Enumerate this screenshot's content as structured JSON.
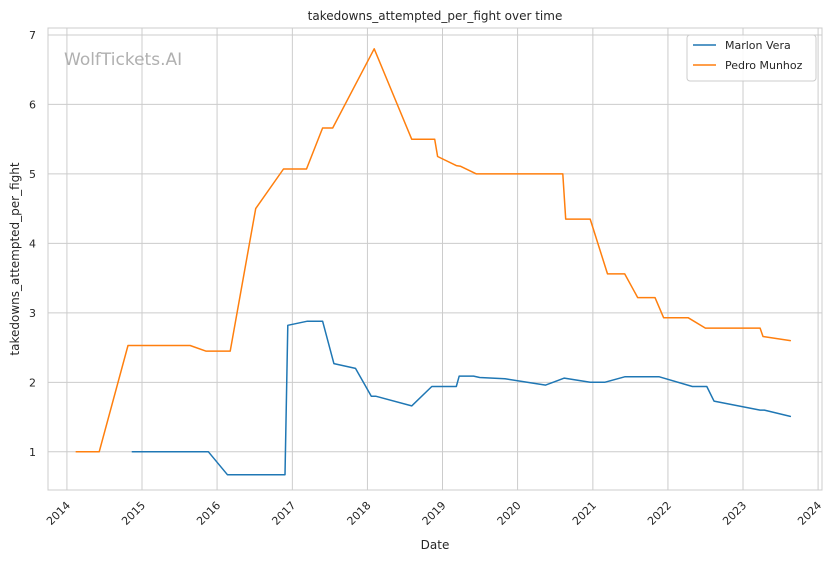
{
  "chart_data": {
    "type": "line",
    "title": "takedowns_attempted_per_fight over time",
    "xlabel": "Date",
    "ylabel": "takedowns_attempted_per_fight",
    "watermark": "WolfTickets.AI",
    "xlim": [
      "2013-10-01",
      "2024-01-20"
    ],
    "ylim": [
      0.45,
      7.1
    ],
    "x_ticks": [
      "2014-01-01",
      "2015-01-01",
      "2016-01-01",
      "2017-01-01",
      "2018-01-01",
      "2019-01-01",
      "2020-01-01",
      "2021-01-01",
      "2022-01-01",
      "2023-01-01",
      "2024-01-01"
    ],
    "x_tick_labels": [
      "2014",
      "2015",
      "2016",
      "2017",
      "2018",
      "2019",
      "2020",
      "2021",
      "2022",
      "2023",
      "2024"
    ],
    "y_ticks": [
      1,
      2,
      3,
      4,
      5,
      6,
      7
    ],
    "y_tick_labels": [
      "1",
      "2",
      "3",
      "4",
      "5",
      "6",
      "7"
    ],
    "grid": true,
    "legend_position": "top-right",
    "series": [
      {
        "name": "Marlon Vera",
        "color": "#1f77b4",
        "points": [
          {
            "x": "2014-11-15",
            "y": 1.0
          },
          {
            "x": "2015-11-20",
            "y": 1.0
          },
          {
            "x": "2016-02-20",
            "y": 0.67
          },
          {
            "x": "2016-11-26",
            "y": 0.67
          },
          {
            "x": "2016-12-10",
            "y": 2.82
          },
          {
            "x": "2017-03-15",
            "y": 2.88
          },
          {
            "x": "2017-05-28",
            "y": 2.88
          },
          {
            "x": "2017-07-22",
            "y": 2.27
          },
          {
            "x": "2017-11-04",
            "y": 2.2
          },
          {
            "x": "2018-01-20",
            "y": 1.8
          },
          {
            "x": "2018-02-10",
            "y": 1.8
          },
          {
            "x": "2018-08-04",
            "y": 1.66
          },
          {
            "x": "2018-11-10",
            "y": 1.94
          },
          {
            "x": "2019-03-09",
            "y": 1.94
          },
          {
            "x": "2019-03-23",
            "y": 2.09
          },
          {
            "x": "2019-06-01",
            "y": 2.09
          },
          {
            "x": "2019-07-01",
            "y": 2.07
          },
          {
            "x": "2019-11-01",
            "y": 2.05
          },
          {
            "x": "2020-05-16",
            "y": 1.96
          },
          {
            "x": "2020-08-15",
            "y": 2.06
          },
          {
            "x": "2020-12-19",
            "y": 2.0
          },
          {
            "x": "2021-02-27",
            "y": 2.0
          },
          {
            "x": "2021-06-05",
            "y": 2.08
          },
          {
            "x": "2021-11-20",
            "y": 2.08
          },
          {
            "x": "2022-04-30",
            "y": 1.94
          },
          {
            "x": "2022-07-09",
            "y": 1.94
          },
          {
            "x": "2022-08-13",
            "y": 1.73
          },
          {
            "x": "2023-03-25",
            "y": 1.6
          },
          {
            "x": "2023-04-15",
            "y": 1.6
          },
          {
            "x": "2023-08-19",
            "y": 1.51
          }
        ]
      },
      {
        "name": "Pedro Munhoz",
        "color": "#ff7f0e",
        "points": [
          {
            "x": "2014-02-15",
            "y": 1.0
          },
          {
            "x": "2014-06-07",
            "y": 1.0
          },
          {
            "x": "2014-10-25",
            "y": 2.53
          },
          {
            "x": "2015-08-23",
            "y": 2.53
          },
          {
            "x": "2015-11-07",
            "y": 2.45
          },
          {
            "x": "2016-03-05",
            "y": 2.45
          },
          {
            "x": "2016-07-07",
            "y": 4.5
          },
          {
            "x": "2016-11-19",
            "y": 5.07
          },
          {
            "x": "2017-03-11",
            "y": 5.07
          },
          {
            "x": "2017-05-28",
            "y": 5.66
          },
          {
            "x": "2017-07-16",
            "y": 5.66
          },
          {
            "x": "2018-02-03",
            "y": 6.8
          },
          {
            "x": "2018-08-04",
            "y": 5.5
          },
          {
            "x": "2018-11-24",
            "y": 5.5
          },
          {
            "x": "2018-12-08",
            "y": 5.25
          },
          {
            "x": "2019-03-09",
            "y": 5.12
          },
          {
            "x": "2019-03-30",
            "y": 5.11
          },
          {
            "x": "2019-06-15",
            "y": 5.0
          },
          {
            "x": "2020-06-20",
            "y": 5.0
          },
          {
            "x": "2020-08-08",
            "y": 5.0
          },
          {
            "x": "2020-08-22",
            "y": 4.35
          },
          {
            "x": "2020-12-19",
            "y": 4.35
          },
          {
            "x": "2021-03-13",
            "y": 3.56
          },
          {
            "x": "2021-06-05",
            "y": 3.56
          },
          {
            "x": "2021-08-07",
            "y": 3.22
          },
          {
            "x": "2021-10-30",
            "y": 3.22
          },
          {
            "x": "2021-12-11",
            "y": 2.93
          },
          {
            "x": "2022-04-09",
            "y": 2.93
          },
          {
            "x": "2022-07-02",
            "y": 2.78
          },
          {
            "x": "2023-03-25",
            "y": 2.78
          },
          {
            "x": "2023-04-08",
            "y": 2.66
          },
          {
            "x": "2023-08-19",
            "y": 2.6
          }
        ]
      }
    ]
  }
}
